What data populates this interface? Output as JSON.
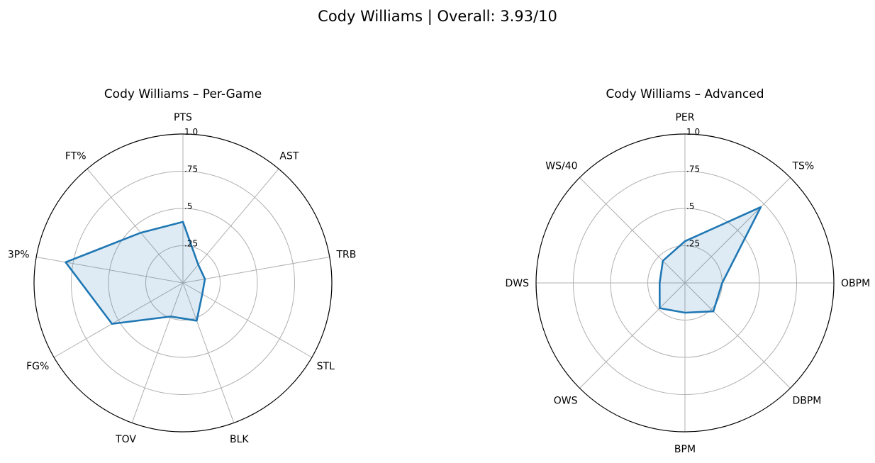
{
  "suptitle": "Cody Williams | Overall: 3.93/10",
  "colors": {
    "line": "#1f77b4",
    "fill": "#1f77b4",
    "fill_opacity": 0.15,
    "grid": "#b0b0b0"
  },
  "chart_data": [
    {
      "type": "radar",
      "title": "Cody Williams – Per-Game",
      "rlim": [
        0,
        1
      ],
      "rticks": [
        0.25,
        0.5,
        0.75,
        1.0
      ],
      "rtick_labels": [
        ".25",
        ".5",
        ".75",
        "1.0"
      ],
      "grid": true,
      "categories": [
        "PTS",
        "AST",
        "TRB",
        "STL",
        "BLK",
        "TOV",
        "FG%",
        "3P%",
        "FT%"
      ],
      "values": [
        0.41,
        0.16,
        0.15,
        0.15,
        0.27,
        0.24,
        0.55,
        0.8,
        0.44
      ]
    },
    {
      "type": "radar",
      "title": "Cody Williams – Advanced",
      "rlim": [
        0,
        1
      ],
      "rticks": [
        0.25,
        0.5,
        0.75,
        1.0
      ],
      "rtick_labels": [
        ".25",
        ".5",
        ".75",
        "1.0"
      ],
      "grid": true,
      "categories": [
        "PER",
        "TS%",
        "OBPM",
        "DBPM",
        "BPM",
        "OWS",
        "DWS",
        "WS/40"
      ],
      "values": [
        0.28,
        0.72,
        0.25,
        0.27,
        0.2,
        0.24,
        0.17,
        0.21
      ]
    }
  ]
}
